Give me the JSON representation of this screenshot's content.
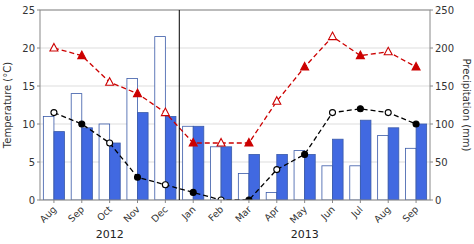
{
  "chart_data": {
    "type": "bar",
    "categories": [
      "Aug",
      "Sep",
      "Oct",
      "Nov",
      "Dec",
      "Jan",
      "Feb",
      "Mar",
      "Apr",
      "May",
      "Jun",
      "Jul",
      "Aug",
      "Sep"
    ],
    "series": [
      {
        "type": "bar",
        "axis": "y2",
        "color": "#FFFFFF",
        "values": [
          110,
          140,
          100,
          160,
          215,
          97,
          70,
          35,
          10,
          65,
          45,
          45,
          85,
          68
        ]
      },
      {
        "type": "bar",
        "axis": "y2",
        "color": "#4169E1",
        "values": [
          90,
          95,
          75,
          115,
          110,
          97,
          70,
          60,
          60,
          60,
          80,
          105,
          95,
          100
        ]
      },
      {
        "type": "line",
        "color": "#CC0000",
        "marker": "triangle",
        "line_style": "dashed",
        "values": [
          20.0,
          19.0,
          15.5,
          14.0,
          11.5,
          7.5,
          7.5,
          7.5,
          13.0,
          17.5,
          21.5,
          19.0,
          19.5,
          17.5
        ]
      },
      {
        "type": "line",
        "color": "#000000",
        "marker": "circle",
        "line_style": "dashed",
        "values": [
          11.5,
          10.0,
          7.5,
          3.0,
          2.0,
          1.0,
          0.0,
          0.0,
          4.0,
          6.0,
          11.5,
          12.0,
          11.5,
          10.0
        ]
      }
    ],
    "ylabel": "Temperature (°C)",
    "y2label": "Precipitation (mm)",
    "ylim": [
      0,
      25
    ],
    "yticks": [
      0,
      5,
      10,
      15,
      20,
      25
    ],
    "y2lim": [
      0,
      250
    ],
    "y2ticks": [
      0,
      50,
      100,
      150,
      200,
      250
    ],
    "grid": true,
    "annotations": [
      {
        "text": "2012",
        "x": 2.0
      },
      {
        "text": "2013",
        "x": 9.0
      }
    ],
    "vlines": [
      4.5
    ]
  }
}
